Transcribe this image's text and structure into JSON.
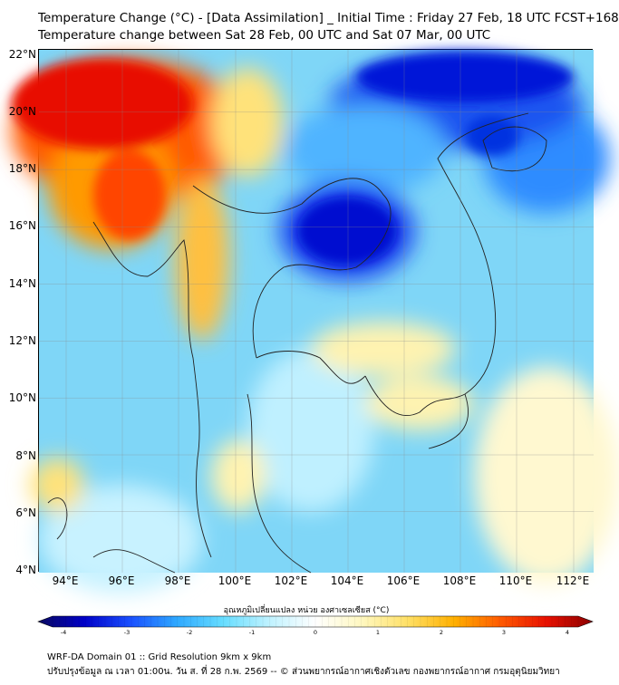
{
  "title_line1": "Temperature Change (°C) - [Data Assimilation] _ Initial Time : Friday 27 Feb, 18 UTC FCST+168",
  "title_line2": "Temperature change between Sat 28 Feb, 00 UTC and Sat 07 Mar, 00 UTC",
  "axes": {
    "lat_labels": [
      "22°N",
      "20°N",
      "18°N",
      "16°N",
      "14°N",
      "12°N",
      "10°N",
      "8°N",
      "6°N",
      "4°N"
    ],
    "lon_labels": [
      "94°E",
      "96°E",
      "98°E",
      "100°E",
      "102°E",
      "104°E",
      "106°E",
      "108°E",
      "110°E",
      "112°E"
    ],
    "lat_range": [
      4,
      22
    ],
    "lon_range": [
      93,
      112.8
    ]
  },
  "colorbar": {
    "label": "อุณหภูมิเปลี่ยนแปลง หน่วย องศาเซลเซียส (°C)",
    "ticks": [
      "-4",
      "-3",
      "-2",
      "-1",
      "0",
      "1",
      "2",
      "3",
      "4"
    ],
    "range": [
      -4,
      4
    ],
    "colors": [
      "#0a0a60",
      "#0000c8",
      "#1a50ff",
      "#2ea8ff",
      "#66ddff",
      "#bff2ff",
      "#ffffff",
      "#fff8c0",
      "#ffe066",
      "#ffb000",
      "#ff5a00",
      "#e81000",
      "#8b0000"
    ]
  },
  "footer_line1": "WRF-DA Domain 01 :: Grid Resolution 9km x 9km",
  "footer_line2": "ปรับปรุงข้อมูล ณ เวลา 01:00น. วัน ส. ที่ 28 ก.พ. 2569 -- © ส่วนพยากรณ์อากาศเชิงตัวเลข กองพยากรณ์อากาศ กรมอุตุนิยมวิทยา",
  "map": {
    "features": [
      {
        "name": "warm-anomaly-myanmar",
        "type": "warm"
      },
      {
        "name": "cold-anomaly-northeast-thailand",
        "type": "cold"
      },
      {
        "name": "cold-anomaly-south-china",
        "type": "cold"
      },
      {
        "name": "cold-anomaly-hainan",
        "type": "cold"
      }
    ]
  }
}
